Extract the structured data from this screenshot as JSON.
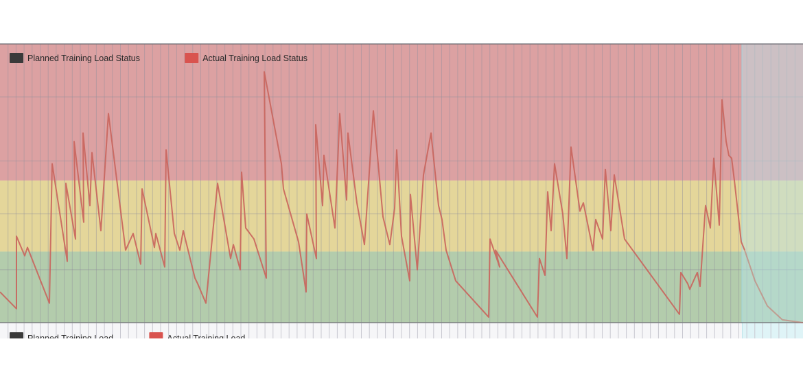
{
  "chart_data": {
    "type": "line",
    "legend": {
      "placement": "top-left",
      "items": [
        {
          "label": "Planned Training Load Status",
          "color": "#3a3a3a"
        },
        {
          "label": "Actual Training Load Status",
          "color": "#d9534f"
        }
      ]
    },
    "lower_legend": {
      "placement": "bottom-left",
      "items": [
        {
          "label": "Planned Training Load",
          "color": "#3a3a3a"
        },
        {
          "label": "Actual Training Load",
          "color": "#d9534f"
        }
      ]
    },
    "zones": [
      {
        "name": "red",
        "from": 0.51,
        "to": 1.0,
        "color": "#dca1a2"
      },
      {
        "name": "yellow",
        "from": 0.255,
        "to": 0.51,
        "color": "#e4d69a"
      },
      {
        "name": "green",
        "from": 0.0,
        "to": 0.255,
        "color": "#b3ccac"
      }
    ],
    "future_overlay_start_x": 1081,
    "future_overlay_color": "#b8e6ee",
    "grid": true,
    "ylim": [
      0,
      1
    ],
    "xlim": [
      0,
      1170
    ],
    "series": [
      {
        "color": "#c9645c",
        "points": [
          [
            0,
            0.11
          ],
          [
            24,
            0.05
          ],
          [
            24,
            0.31
          ],
          [
            36,
            0.24
          ],
          [
            40,
            0.27
          ],
          [
            72,
            0.07
          ],
          [
            76,
            0.57
          ],
          [
            98,
            0.22
          ],
          [
            96,
            0.5
          ],
          [
            110,
            0.3
          ],
          [
            108,
            0.65
          ],
          [
            122,
            0.36
          ],
          [
            121,
            0.68
          ],
          [
            131,
            0.42
          ],
          [
            134,
            0.61
          ],
          [
            147,
            0.33
          ],
          [
            158,
            0.75
          ],
          [
            183,
            0.26
          ],
          [
            194,
            0.32
          ],
          [
            205,
            0.21
          ],
          [
            207,
            0.48
          ],
          [
            225,
            0.27
          ],
          [
            227,
            0.32
          ],
          [
            240,
            0.2
          ],
          [
            242,
            0.62
          ],
          [
            254,
            0.32
          ],
          [
            262,
            0.26
          ],
          [
            267,
            0.33
          ],
          [
            284,
            0.16
          ],
          [
            288,
            0.14
          ],
          [
            300,
            0.07
          ],
          [
            317,
            0.5
          ],
          [
            336,
            0.23
          ],
          [
            340,
            0.28
          ],
          [
            350,
            0.19
          ],
          [
            352,
            0.54
          ],
          [
            358,
            0.34
          ],
          [
            370,
            0.3
          ],
          [
            388,
            0.16
          ],
          [
            385,
            0.9
          ],
          [
            410,
            0.57
          ],
          [
            413,
            0.48
          ],
          [
            435,
            0.29
          ],
          [
            446,
            0.11
          ],
          [
            447,
            0.39
          ],
          [
            461,
            0.23
          ],
          [
            460,
            0.71
          ],
          [
            470,
            0.42
          ],
          [
            472,
            0.6
          ],
          [
            488,
            0.34
          ],
          [
            495,
            0.75
          ],
          [
            505,
            0.44
          ],
          [
            507,
            0.68
          ],
          [
            520,
            0.43
          ],
          [
            531,
            0.28
          ],
          [
            544,
            0.76
          ],
          [
            558,
            0.38
          ],
          [
            568,
            0.28
          ],
          [
            575,
            0.41
          ],
          [
            578,
            0.62
          ],
          [
            585,
            0.31
          ],
          [
            597,
            0.15
          ],
          [
            598,
            0.46
          ],
          [
            608,
            0.19
          ],
          [
            617,
            0.53
          ],
          [
            628,
            0.68
          ],
          [
            639,
            0.42
          ],
          [
            644,
            0.37
          ],
          [
            650,
            0.26
          ],
          [
            664,
            0.15
          ],
          [
            712,
            0.02
          ],
          [
            714,
            0.3
          ],
          [
            728,
            0.2
          ],
          [
            722,
            0.26
          ],
          [
            783,
            0.02
          ],
          [
            786,
            0.23
          ],
          [
            794,
            0.17
          ],
          [
            798,
            0.47
          ],
          [
            803,
            0.33
          ],
          [
            808,
            0.57
          ],
          [
            820,
            0.39
          ],
          [
            826,
            0.23
          ],
          [
            832,
            0.63
          ],
          [
            845,
            0.4
          ],
          [
            850,
            0.43
          ],
          [
            864,
            0.26
          ],
          [
            868,
            0.37
          ],
          [
            878,
            0.3
          ],
          [
            882,
            0.55
          ],
          [
            890,
            0.33
          ],
          [
            895,
            0.53
          ],
          [
            910,
            0.3
          ],
          [
            990,
            0.03
          ],
          [
            992,
            0.18
          ],
          [
            1002,
            0.14
          ],
          [
            1005,
            0.12
          ],
          [
            1016,
            0.18
          ],
          [
            1020,
            0.13
          ],
          [
            1028,
            0.42
          ],
          [
            1035,
            0.34
          ],
          [
            1040,
            0.59
          ],
          [
            1048,
            0.35
          ],
          [
            1052,
            0.8
          ],
          [
            1058,
            0.65
          ],
          [
            1062,
            0.6
          ],
          [
            1066,
            0.59
          ],
          [
            1070,
            0.51
          ],
          [
            1080,
            0.29
          ],
          [
            1085,
            0.26
          ]
        ]
      },
      {
        "color": "#c9645c",
        "opacity": 0.5,
        "points": [
          [
            1085,
            0.26
          ],
          [
            1100,
            0.15
          ],
          [
            1118,
            0.06
          ],
          [
            1140,
            0.01
          ],
          [
            1170,
            0.0
          ]
        ]
      }
    ]
  }
}
